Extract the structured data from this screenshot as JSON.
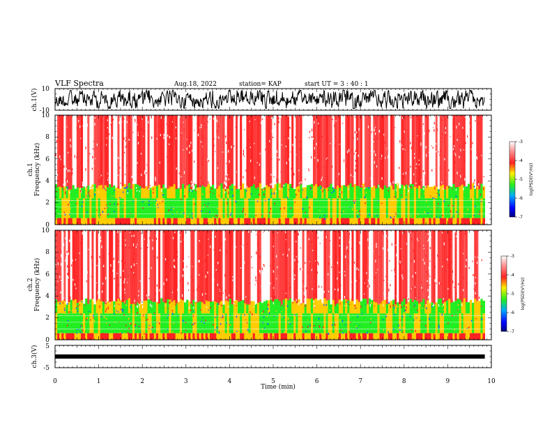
{
  "header": {
    "title": "VLF Spectra",
    "date": "Aug.18, 2022",
    "station": "station= KAP",
    "start": "start  UT  =   3  : 40 : 1"
  },
  "colors": {
    "high": "#ffffff",
    "upper": "#ff2222",
    "mid": "#ffcc00",
    "low": "#22ee22",
    "lower": "#0066ff",
    "bottom": "#000088"
  },
  "chart_data": [
    {
      "type": "line",
      "panel": "ch1-waveform",
      "ylabel": "ch.1(V)",
      "ylim": [
        -10,
        10
      ],
      "ytick_labels": [
        "10",
        "-10"
      ]
    },
    {
      "type": "heatmap",
      "panel": "ch1-spectrogram",
      "ylabel_top": "ch.1",
      "ylabel": "Frequency  (kHz)",
      "ylim": [
        0,
        10
      ],
      "ytick_labels": [
        "0",
        "2",
        "4",
        "6",
        "8",
        "10"
      ],
      "colorbar": {
        "label": "log(PSD)(V²/Hz)",
        "range": [
          -7,
          -3
        ],
        "tick_labels": [
          "-3",
          "-4",
          "-5",
          "-6",
          "-7"
        ]
      }
    },
    {
      "type": "heatmap",
      "panel": "ch2-spectrogram",
      "ylabel_top": "ch.2",
      "ylabel": "Frequency  (kHz)",
      "ylim": [
        0,
        10
      ],
      "ytick_labels": [
        "0",
        "2",
        "4",
        "6",
        "8",
        "10"
      ],
      "colorbar": {
        "label": "log(PSD)(V²/Hz)",
        "range": [
          -7,
          -3
        ],
        "tick_labels": [
          "-3",
          "-4",
          "-5",
          "-6",
          "-7"
        ]
      }
    },
    {
      "type": "line",
      "panel": "ch3-waveform",
      "ylabel": "ch.3(V)",
      "ylim": [
        -5,
        5
      ],
      "ytick_labels": [
        "5",
        "-5"
      ]
    }
  ],
  "x_axis": {
    "label": "Time  (min)",
    "xlim": [
      0,
      10
    ],
    "tick_labels": [
      "0",
      "1",
      "2",
      "3",
      "4",
      "5",
      "6",
      "7",
      "8",
      "9",
      "10"
    ],
    "data_end_min": 9.85
  }
}
